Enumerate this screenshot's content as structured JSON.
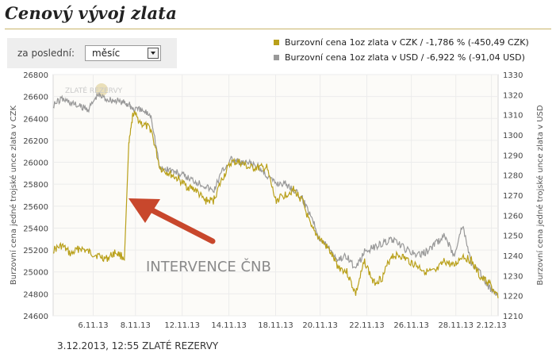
{
  "page": {
    "title": "Cenový vývoj zlata",
    "footer": "3.12.2013, 12:55 ZLATÉ REZERVY"
  },
  "filter": {
    "label": "za poslední:",
    "selected": "měsíc"
  },
  "colors": {
    "czk": "#b9a01a",
    "usd": "#999999",
    "title_rule": "#c9b46a",
    "arrow": "#c8472c"
  },
  "chart_data": {
    "type": "line",
    "legend_position": "top-right",
    "series": [
      {
        "name": "Burzovní cena 1oz zlata v CZK / -1,786 % (-450,49 CZK)",
        "axis": "left",
        "x": [
          0,
          2,
          4,
          6,
          8,
          10,
          12,
          14,
          16,
          17,
          18,
          20,
          22,
          24,
          26,
          28,
          30,
          32,
          34,
          36,
          38,
          40,
          42,
          44,
          46,
          48,
          50,
          52,
          54,
          56,
          58,
          60,
          62,
          64,
          66,
          68,
          70,
          72,
          74,
          76,
          78,
          80,
          82,
          84,
          86,
          88,
          90,
          92,
          94,
          96,
          98,
          100
        ],
        "values": [
          25200,
          25240,
          25160,
          25220,
          25180,
          25150,
          25120,
          25180,
          25130,
          26150,
          26450,
          26350,
          26300,
          25950,
          25900,
          25850,
          25780,
          25750,
          25650,
          25650,
          25850,
          26000,
          26000,
          25950,
          25950,
          25950,
          25650,
          25700,
          25750,
          25650,
          25400,
          25300,
          25200,
          25050,
          25000,
          24800,
          25100,
          24900,
          24950,
          25150,
          25150,
          25100,
          25050,
          25000,
          25000,
          25100,
          25050,
          25150,
          25100,
          24950,
          24900,
          24760
        ]
      },
      {
        "name": "Burzovní cena 1oz zlata v USD / -6,922 % (-91,04 USD)",
        "axis": "right",
        "x": [
          0,
          2,
          4,
          6,
          8,
          10,
          12,
          14,
          16,
          17,
          18,
          20,
          22,
          24,
          26,
          28,
          30,
          32,
          34,
          36,
          38,
          40,
          42,
          44,
          46,
          48,
          50,
          52,
          54,
          56,
          58,
          60,
          62,
          64,
          66,
          68,
          70,
          72,
          74,
          76,
          78,
          80,
          82,
          84,
          86,
          88,
          90,
          92,
          94,
          96,
          98,
          100
        ],
        "values": [
          1315,
          1318,
          1316,
          1314,
          1313,
          1320,
          1318,
          1317,
          1316,
          1315,
          1313,
          1312,
          1310,
          1283,
          1283,
          1281,
          1279,
          1277,
          1275,
          1272,
          1282,
          1288,
          1286,
          1286,
          1284,
          1280,
          1276,
          1276,
          1273,
          1268,
          1260,
          1248,
          1244,
          1238,
          1240,
          1233,
          1242,
          1244,
          1246,
          1248,
          1245,
          1242,
          1240,
          1242,
          1246,
          1250,
          1240,
          1255,
          1236,
          1231,
          1224,
          1221
        ]
      }
    ],
    "x_tick_labels": [
      "6.11.13",
      "8.11.13",
      "12.11.13",
      "14.11.13",
      "18.11.13",
      "20.11.13",
      "22.11.13",
      "26.11.13",
      "28.11.13",
      "2.12.13"
    ],
    "y_left": {
      "label": "Burzovní cena jedné trojské unce zlata v CZK",
      "min": 24600,
      "max": 26800,
      "ticks": [
        24600,
        24800,
        25000,
        25200,
        25400,
        25600,
        25800,
        26000,
        26200,
        26400,
        26600,
        26800
      ]
    },
    "y_right": {
      "label": "Burzovní cena jedné trojské unce zlata v USD",
      "min": 1210,
      "max": 1330,
      "ticks": [
        1210,
        1220,
        1230,
        1240,
        1250,
        1260,
        1270,
        1280,
        1290,
        1300,
        1310,
        1320,
        1330
      ]
    },
    "annotation": "INTERVENCE ČNB",
    "watermark": "ZLATÉ REZERVY"
  }
}
